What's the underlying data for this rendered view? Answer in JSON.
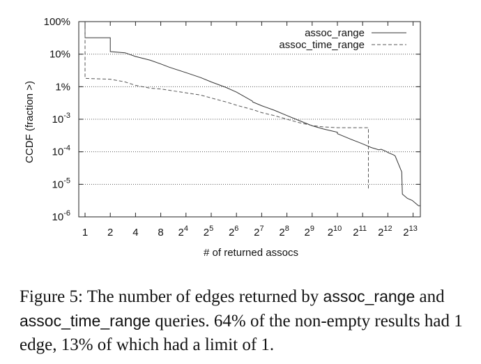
{
  "chart_data": {
    "type": "line",
    "xlabel": "# of returned assocs",
    "ylabel": "CCDF (fraction >)",
    "x_scale": "log2",
    "y_scale": "log10",
    "xlim": [
      1,
      10000
    ],
    "ylim": [
      1e-06,
      1
    ],
    "x_ticks": [
      {
        "value": 1,
        "base": "1",
        "exp": ""
      },
      {
        "value": 2,
        "base": "2",
        "exp": ""
      },
      {
        "value": 4,
        "base": "4",
        "exp": ""
      },
      {
        "value": 8,
        "base": "8",
        "exp": ""
      },
      {
        "value": 16,
        "base": "2",
        "exp": "4"
      },
      {
        "value": 32,
        "base": "2",
        "exp": "5"
      },
      {
        "value": 64,
        "base": "2",
        "exp": "6"
      },
      {
        "value": 128,
        "base": "2",
        "exp": "7"
      },
      {
        "value": 256,
        "base": "2",
        "exp": "8"
      },
      {
        "value": 512,
        "base": "2",
        "exp": "9"
      },
      {
        "value": 1024,
        "base": "2",
        "exp": "10"
      },
      {
        "value": 2048,
        "base": "2",
        "exp": "11"
      },
      {
        "value": 4096,
        "base": "2",
        "exp": "12"
      },
      {
        "value": 8192,
        "base": "2",
        "exp": "13"
      }
    ],
    "y_ticks": [
      {
        "value": 1,
        "base": "100%",
        "exp": ""
      },
      {
        "value": 0.1,
        "base": "10%",
        "exp": ""
      },
      {
        "value": 0.01,
        "base": "1%",
        "exp": ""
      },
      {
        "value": 0.001,
        "base": "10",
        "exp": "-3"
      },
      {
        "value": 0.0001,
        "base": "10",
        "exp": "-4"
      },
      {
        "value": 1e-05,
        "base": "10",
        "exp": "-5"
      },
      {
        "value": 1e-06,
        "base": "10",
        "exp": "-6"
      }
    ],
    "grid": "horizontal dotted",
    "legend_position": "top-right",
    "series": [
      {
        "name": "assoc_range",
        "style": "solid",
        "x": [
          1,
          1,
          2,
          2,
          3,
          4,
          6,
          8,
          10,
          16,
          24,
          32,
          48,
          64,
          99,
          100,
          128,
          180,
          256,
          362,
          512,
          700,
          1024,
          1024,
          1500,
          2048,
          2600,
          3200,
          3400,
          4000,
          4100,
          4800,
          5000,
          6000,
          6100,
          7000,
          8000,
          9500,
          10000
        ],
        "y": [
          1,
          0.32,
          0.32,
          0.12,
          0.11,
          0.085,
          0.065,
          0.05,
          0.04,
          0.027,
          0.019,
          0.014,
          0.0095,
          0.0068,
          0.0036,
          0.0034,
          0.0026,
          0.0019,
          0.0013,
          0.0009,
          0.00063,
          0.0005,
          0.0004,
          0.00036,
          0.00024,
          0.000175,
          0.000135,
          0.000115,
          0.00012,
          0.0001,
          9.5e-05,
          8e-05,
          7.5e-05,
          2.4e-05,
          5e-06,
          3.7e-06,
          3.2e-06,
          2.2e-06,
          2.2e-06
        ]
      },
      {
        "name": "assoc_time_range",
        "style": "dashed",
        "x": [
          1,
          1,
          2,
          3,
          4,
          6,
          8,
          10,
          16,
          24,
          32,
          48,
          64,
          99,
          128,
          180,
          256,
          362,
          512,
          700,
          1024,
          1500,
          2048,
          2300,
          2400,
          2400
        ],
        "y": [
          0.6,
          0.018,
          0.017,
          0.014,
          0.011,
          0.009,
          0.0085,
          0.0078,
          0.0065,
          0.0055,
          0.0045,
          0.0034,
          0.0027,
          0.002,
          0.0016,
          0.0013,
          0.001,
          0.00078,
          0.00064,
          0.00058,
          0.00055,
          0.00055,
          0.00055,
          0.00055,
          0.00055,
          6.5e-06
        ]
      }
    ]
  },
  "caption": {
    "label": "Figure 5:",
    "part1": " The number of edges returned by ",
    "code1": "assoc_range",
    "part2": " and ",
    "code2": "assoc_time_range",
    "part3": " queries.  64% of the non-empty results had 1 edge, 13% of which had a limit of 1."
  }
}
